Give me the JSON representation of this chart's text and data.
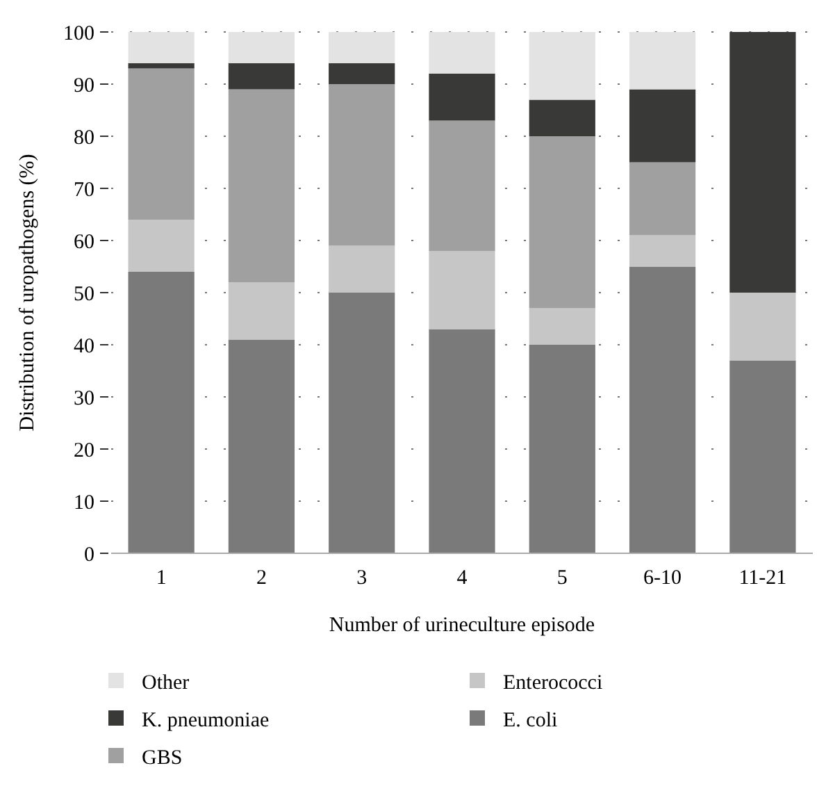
{
  "chart_data": {
    "type": "bar",
    "stacked": true,
    "xlabel": "Number of urineculture episode",
    "ylabel": "Distribution of uropathogens (%)",
    "categories": [
      "1",
      "2",
      "3",
      "4",
      "5",
      "6-10",
      "11-21"
    ],
    "series": [
      {
        "name": "E. coli",
        "color": "#7a7a7a",
        "values": [
          54,
          41,
          50,
          43,
          40,
          55,
          37
        ]
      },
      {
        "name": "Enterococci",
        "color": "#c5c6c5",
        "values": [
          10,
          11,
          9,
          15,
          7,
          6,
          13
        ]
      },
      {
        "name": "GBS",
        "color": "#a0a0a0",
        "values": [
          29,
          37,
          31,
          25,
          33,
          14,
          0
        ]
      },
      {
        "name": "K. pneumoniae",
        "color": "#393937",
        "values": [
          1,
          5,
          4,
          9,
          7,
          14,
          50
        ]
      },
      {
        "name": "Other",
        "color": "#e2e3e2",
        "values": [
          6,
          6,
          6,
          8,
          13,
          11,
          0
        ]
      }
    ],
    "ylim": [
      0,
      100
    ],
    "yticks": [
      0,
      10,
      20,
      30,
      40,
      50,
      60,
      70,
      80,
      90,
      100
    ],
    "grid": "y",
    "legend": "bottom"
  }
}
